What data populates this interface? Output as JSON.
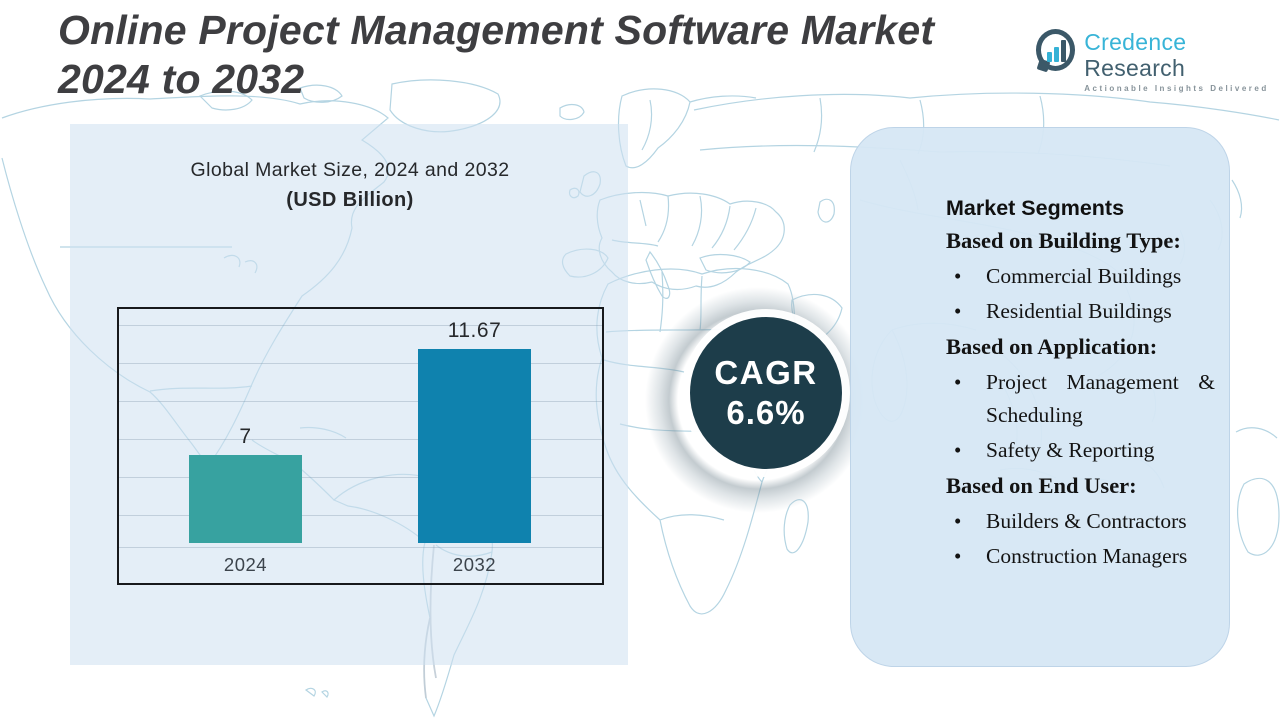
{
  "header": {
    "title_line1": "Online Project Management Software Market",
    "title_line2": "2024 to 2032"
  },
  "logo": {
    "brand_primary": "Credence",
    "brand_secondary": "Research",
    "tagline": "Actionable Insights Delivered",
    "icon": "bar-chart-speech-bubble-icon",
    "brand_primary_color": "#38b4d7",
    "brand_secondary_color": "#42606f"
  },
  "chart_data": {
    "type": "bar",
    "title": "Global Market Size, 2024 and 2032",
    "subtitle": "(USD Billion)",
    "categories": [
      "2024",
      "2032"
    ],
    "values": [
      7,
      11.67
    ],
    "value_labels": [
      "7",
      "11.67"
    ],
    "bar_colors": [
      "#37a2a0",
      "#0f82ae"
    ],
    "ylabel": "",
    "xlabel": "",
    "grid": true,
    "gridlines": "horizontal",
    "y_axis_labels_visible": false,
    "legend": "none"
  },
  "cagr": {
    "label": "CAGR",
    "value": "6.6%",
    "badge_color": "#1d3d4a"
  },
  "segments": {
    "heading": "Market Segments",
    "groups": [
      {
        "heading": "Based on Building Type:",
        "items": [
          "Commercial Buildings",
          "Residential Buildings"
        ]
      },
      {
        "heading": "Based on Application:",
        "items": [
          "Project Management & Scheduling",
          "Safety & Reporting"
        ]
      },
      {
        "heading": "Based on End User:",
        "items": [
          "Builders & Contractors",
          "Construction Managers"
        ]
      }
    ]
  },
  "colors": {
    "bar_2024": "#37a2a0",
    "bar_2032": "#0f82ae",
    "cagr_circle": "#1d3d4a",
    "left_panel": "#e7eff7",
    "right_panel": "#d8e8f4",
    "map_stroke": "#a7cddd",
    "title_text": "#3e3e41"
  }
}
